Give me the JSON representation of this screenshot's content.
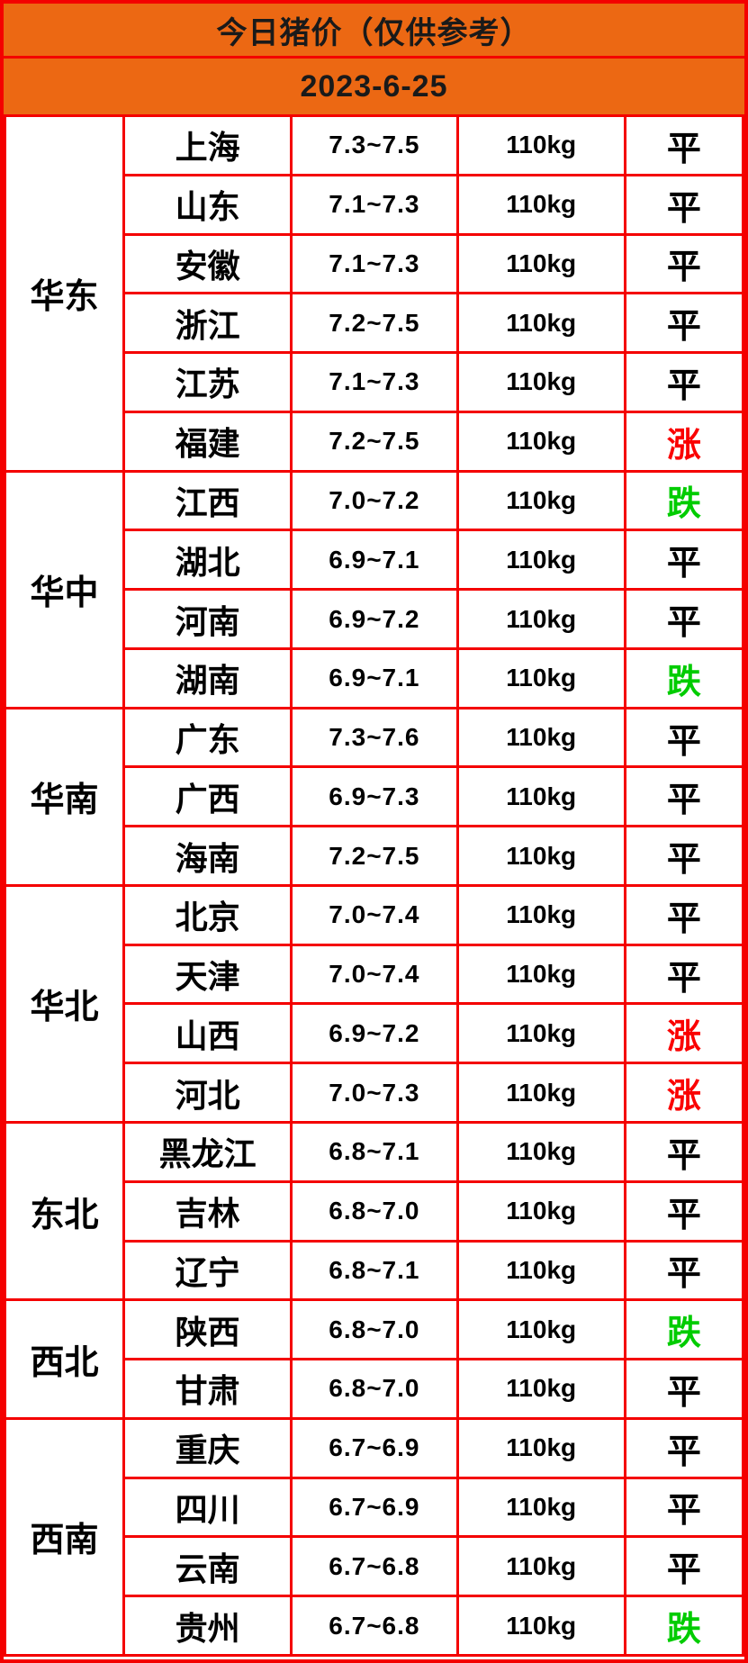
{
  "header": {
    "title": "今日猪价（仅供参考）",
    "date": "2023-6-25"
  },
  "colors": {
    "header_bg": "#ec6813",
    "grid_border": "#f40000",
    "status_flat": "#000000",
    "status_up": "#fa0000",
    "status_down": "#00cc00"
  },
  "status_colors": {
    "平": "#000000",
    "涨": "#fa0000",
    "跌": "#00cc00"
  },
  "chart_data": {
    "type": "table",
    "title": "今日猪价（仅供参考）",
    "subtitle": "2023-6-25",
    "legend_position": "none",
    "grid": true,
    "rows": [
      {
        "region": "华东",
        "province": "上海",
        "price": "7.3~7.5",
        "weight": "110kg",
        "status": "平"
      },
      {
        "region": "华东",
        "province": "山东",
        "price": "7.1~7.3",
        "weight": "110kg",
        "status": "平"
      },
      {
        "region": "华东",
        "province": "安徽",
        "price": "7.1~7.3",
        "weight": "110kg",
        "status": "平"
      },
      {
        "region": "华东",
        "province": "浙江",
        "price": "7.2~7.5",
        "weight": "110kg",
        "status": "平"
      },
      {
        "region": "华东",
        "province": "江苏",
        "price": "7.1~7.3",
        "weight": "110kg",
        "status": "平"
      },
      {
        "region": "华东",
        "province": "福建",
        "price": "7.2~7.5",
        "weight": "110kg",
        "status": "涨"
      },
      {
        "region": "华中",
        "province": "江西",
        "price": "7.0~7.2",
        "weight": "110kg",
        "status": "跌"
      },
      {
        "region": "华中",
        "province": "湖北",
        "price": "6.9~7.1",
        "weight": "110kg",
        "status": "平"
      },
      {
        "region": "华中",
        "province": "河南",
        "price": "6.9~7.2",
        "weight": "110kg",
        "status": "平"
      },
      {
        "region": "华中",
        "province": "湖南",
        "price": "6.9~7.1",
        "weight": "110kg",
        "status": "跌"
      },
      {
        "region": "华南",
        "province": "广东",
        "price": "7.3~7.6",
        "weight": "110kg",
        "status": "平"
      },
      {
        "region": "华南",
        "province": "广西",
        "price": "6.9~7.3",
        "weight": "110kg",
        "status": "平"
      },
      {
        "region": "华南",
        "province": "海南",
        "price": "7.2~7.5",
        "weight": "110kg",
        "status": "平"
      },
      {
        "region": "华北",
        "province": "北京",
        "price": "7.0~7.4",
        "weight": "110kg",
        "status": "平"
      },
      {
        "region": "华北",
        "province": "天津",
        "price": "7.0~7.4",
        "weight": "110kg",
        "status": "平"
      },
      {
        "region": "华北",
        "province": "山西",
        "price": "6.9~7.2",
        "weight": "110kg",
        "status": "涨"
      },
      {
        "region": "华北",
        "province": "河北",
        "price": "7.0~7.3",
        "weight": "110kg",
        "status": "涨"
      },
      {
        "region": "东北",
        "province": "黑龙江",
        "price": "6.8~7.1",
        "weight": "110kg",
        "status": "平"
      },
      {
        "region": "东北",
        "province": "吉林",
        "price": "6.8~7.0",
        "weight": "110kg",
        "status": "平"
      },
      {
        "region": "东北",
        "province": "辽宁",
        "price": "6.8~7.1",
        "weight": "110kg",
        "status": "平"
      },
      {
        "region": "西北",
        "province": "陕西",
        "price": "6.8~7.0",
        "weight": "110kg",
        "status": "跌"
      },
      {
        "region": "西北",
        "province": "甘肃",
        "price": "6.8~7.0",
        "weight": "110kg",
        "status": "平"
      },
      {
        "region": "西南",
        "province": "重庆",
        "price": "6.7~6.9",
        "weight": "110kg",
        "status": "平"
      },
      {
        "region": "西南",
        "province": "四川",
        "price": "6.7~6.9",
        "weight": "110kg",
        "status": "平"
      },
      {
        "region": "西南",
        "province": "云南",
        "price": "6.7~6.8",
        "weight": "110kg",
        "status": "平"
      },
      {
        "region": "西南",
        "province": "贵州",
        "price": "6.7~6.8",
        "weight": "110kg",
        "status": "跌"
      }
    ]
  }
}
